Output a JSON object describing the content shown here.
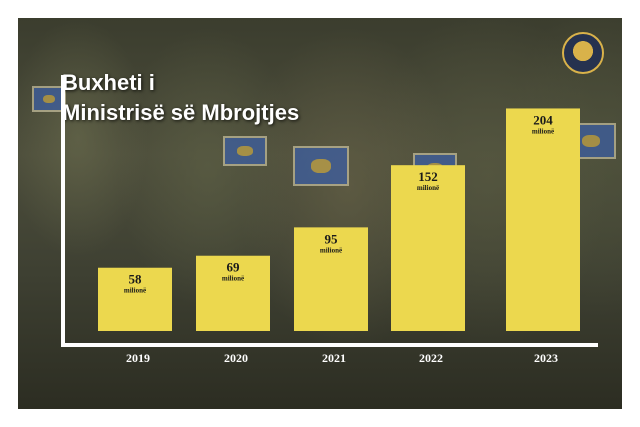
{
  "title_lines": [
    "Buxheti i",
    "Ministrisë së Mbrojtjes"
  ],
  "emblem": "kosovo-security-force-emblem",
  "chart_data": {
    "type": "bar",
    "categories": [
      "2019",
      "2020",
      "2021",
      "2022",
      "2023"
    ],
    "values": [
      58,
      69,
      95,
      152,
      204
    ],
    "value_unit": "milionë",
    "ylim": [
      0,
      220
    ],
    "bar_color": "#ecd84e",
    "axis_color": "#ffffff",
    "grid": false,
    "legend": "none"
  }
}
